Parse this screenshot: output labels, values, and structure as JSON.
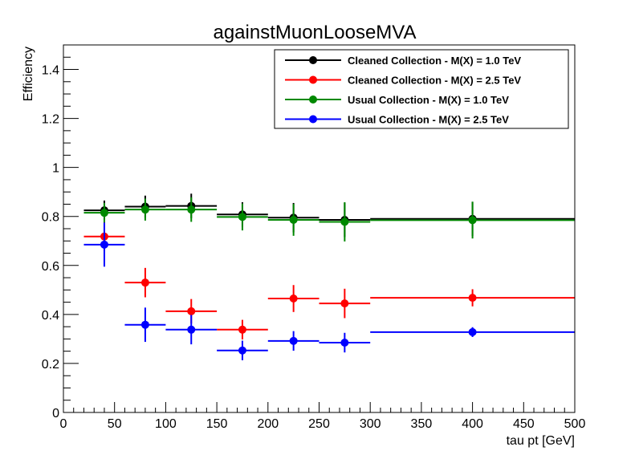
{
  "chart_data": {
    "type": "scatter",
    "title": "againstMuonLooseMVA",
    "xlabel": "tau pt [GeV]",
    "ylabel": "Efficiency",
    "xlim": [
      0,
      500
    ],
    "ylim": [
      0,
      1.5
    ],
    "x_ticks": [
      "0",
      "50",
      "100",
      "150",
      "200",
      "250",
      "300",
      "350",
      "400",
      "450",
      "500"
    ],
    "y_ticks": [
      "0",
      "0.2",
      "0.4",
      "0.6",
      "0.8",
      "1",
      "1.2",
      "1.4"
    ],
    "legend_position": "top-right",
    "bins": [
      [
        20,
        60
      ],
      [
        60,
        100
      ],
      [
        100,
        150
      ],
      [
        150,
        200
      ],
      [
        200,
        250
      ],
      [
        250,
        300
      ],
      [
        300,
        500
      ]
    ],
    "x": [
      40,
      80,
      125,
      175,
      225,
      275,
      400
    ],
    "series": [
      {
        "name": "Cleaned Collection - M(X) = 1.0 TeV",
        "color": "#000000",
        "values": [
          0.825,
          0.84,
          0.843,
          0.808,
          0.795,
          0.786,
          0.79
        ],
        "errors": [
          0.04,
          0.045,
          0.05,
          0.05,
          0.06,
          0.07,
          0.07
        ]
      },
      {
        "name": "Cleaned Collection - M(X) = 2.5 TeV",
        "color": "#ff0000",
        "values": [
          0.718,
          0.53,
          0.413,
          0.338,
          0.465,
          0.445,
          0.468
        ],
        "errors": [
          0.06,
          0.06,
          0.05,
          0.04,
          0.055,
          0.06,
          0.035
        ]
      },
      {
        "name": "Usual Collection - M(X) = 1.0 TeV",
        "color": "#008800",
        "values": [
          0.815,
          0.828,
          0.828,
          0.798,
          0.786,
          0.778,
          0.785
        ],
        "errors": [
          0.04,
          0.045,
          0.05,
          0.055,
          0.065,
          0.08,
          0.075
        ]
      },
      {
        "name": "Usual Collection - M(X) = 2.5 TeV",
        "color": "#0000ff",
        "values": [
          0.685,
          0.358,
          0.338,
          0.253,
          0.292,
          0.285,
          0.328
        ],
        "errors": [
          0.09,
          0.07,
          0.06,
          0.04,
          0.04,
          0.04,
          0.02
        ]
      }
    ]
  }
}
